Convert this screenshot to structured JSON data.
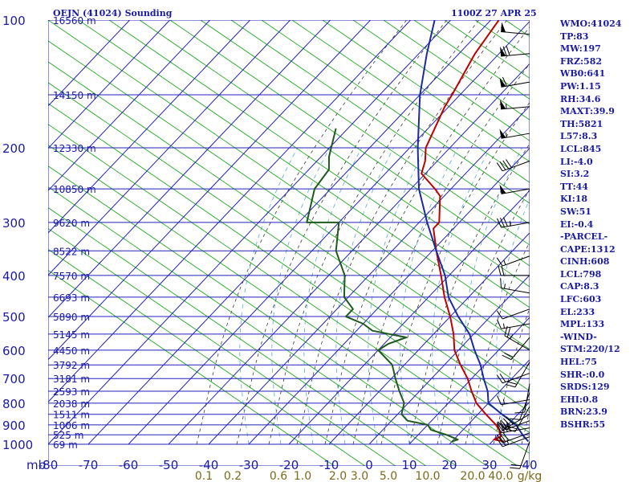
{
  "title_left": "OEJN (41024) Sounding",
  "title_right": "1100Z 27 APR 25",
  "indices": [
    "WMO:41024",
    "TP:83",
    "MW:197",
    "FRZ:582",
    "WB0:641",
    "PW:1.15",
    "RH:34.6",
    "MAXT:39.9",
    "TH:5821",
    "L57:8.3",
    "LCL:845",
    "LI:-4.0",
    "SI:3.2",
    "TT:44",
    "KI:18",
    "SW:51",
    "EI:-0.4",
    "-PARCEL-",
    "CAPE:1312",
    "CINH:608",
    "LCL:798",
    "CAP:8.3",
    "LFC:603",
    "EL:233",
    "MPL:133",
    "-WIND-",
    "STM:220/12",
    "HEL:75",
    "SHR-:0.0",
    "SRDS:129",
    "EHI:0.8",
    "BRN:23.9",
    "BSHR:55"
  ],
  "chart_data": {
    "type": "line",
    "chart_kind": "skew-T log-P sounding",
    "y_axis": "pressure (mb), log scale",
    "ylim": [
      1000,
      100
    ],
    "pressure_ticks": [
      "100",
      "200",
      "300",
      "400",
      "500",
      "600",
      "700",
      "800",
      "900",
      "1000"
    ],
    "temperature_unit_label": "mb",
    "temperature_ticks": [
      "-80",
      "-70",
      "-60",
      "-50",
      "-40",
      "-30",
      "-20",
      "-10",
      "0",
      "10",
      "20",
      "30",
      "40"
    ],
    "mixing_ratio_labels": [
      "0.1",
      "0.2",
      "0.6",
      "1.0",
      "2.0",
      "3.0",
      "5.0",
      "10.0",
      "20.0",
      "40.0",
      "g/kg"
    ],
    "height_labels": [
      {
        "text": "16560 m",
        "p": 100
      },
      {
        "text": "14150 m",
        "p": 150
      },
      {
        "text": "12330 m",
        "p": 200
      },
      {
        "text": "10850 m",
        "p": 250
      },
      {
        "text": "9620 m",
        "p": 300
      },
      {
        "text": "8522 m",
        "p": 350
      },
      {
        "text": "7570 m",
        "p": 400
      },
      {
        "text": "6693 m",
        "p": 450
      },
      {
        "text": "5890 m",
        "p": 500
      },
      {
        "text": "5145 m",
        "p": 550
      },
      {
        "text": "4450 m",
        "p": 600
      },
      {
        "text": "3792 m",
        "p": 650
      },
      {
        "text": "3181 m",
        "p": 700
      },
      {
        "text": "2593 m",
        "p": 750
      },
      {
        "text": "2038 m",
        "p": 800
      },
      {
        "text": "1511 m",
        "p": 850
      },
      {
        "text": "1006 m",
        "p": 900
      },
      {
        "text": "525 m",
        "p": 950
      },
      {
        "text": "69 m",
        "p": 1000
      }
    ],
    "series": [
      {
        "color": "#c00000",
        "points": [
          [
            985,
            33
          ],
          [
            975,
            30
          ],
          [
            960,
            31
          ],
          [
            925,
            29
          ],
          [
            900,
            27
          ],
          [
            850,
            22
          ],
          [
            800,
            17
          ],
          [
            750,
            13
          ],
          [
            700,
            9
          ],
          [
            650,
            4
          ],
          [
            600,
            -1
          ],
          [
            550,
            -5
          ],
          [
            500,
            -10
          ],
          [
            450,
            -16
          ],
          [
            400,
            -22
          ],
          [
            350,
            -29
          ],
          [
            310,
            -35
          ],
          [
            300,
            -35
          ],
          [
            260,
            -41
          ],
          [
            250,
            -44
          ],
          [
            230,
            -51
          ],
          [
            215,
            -53
          ],
          [
            200,
            -56
          ],
          [
            160,
            -61
          ],
          [
            150,
            -62
          ],
          [
            120,
            -66
          ],
          [
            100,
            -68
          ]
        ]
      },
      {
        "color": "#1a2aa0",
        "points": [
          [
            985,
            39
          ],
          [
            950,
            36
          ],
          [
            900,
            32
          ],
          [
            850,
            26
          ],
          [
            800,
            20
          ],
          [
            750,
            17
          ],
          [
            700,
            13
          ],
          [
            650,
            9
          ],
          [
            600,
            4
          ],
          [
            550,
            -1
          ],
          [
            500,
            -8
          ],
          [
            450,
            -15
          ],
          [
            400,
            -21
          ],
          [
            350,
            -29
          ],
          [
            300,
            -38
          ],
          [
            250,
            -48
          ],
          [
            200,
            -58
          ],
          [
            150,
            -70
          ],
          [
            120,
            -78
          ],
          [
            100,
            -84
          ]
        ]
      },
      {
        "color": "#1e5a1e",
        "points": [
          [
            985,
            20
          ],
          [
            975,
            21
          ],
          [
            950,
            17
          ],
          [
            925,
            12
          ],
          [
            900,
            10
          ],
          [
            880,
            4
          ],
          [
            850,
            1
          ],
          [
            800,
            -1
          ],
          [
            750,
            -5
          ],
          [
            700,
            -9
          ],
          [
            650,
            -13
          ],
          [
            600,
            -20
          ],
          [
            580,
            -19
          ],
          [
            560,
            -16
          ],
          [
            540,
            -26
          ],
          [
            520,
            -30
          ],
          [
            500,
            -36
          ],
          [
            480,
            -36
          ],
          [
            450,
            -41
          ],
          [
            400,
            -46
          ],
          [
            350,
            -54
          ],
          [
            300,
            -60
          ],
          [
            300,
            -68
          ],
          [
            250,
            -74
          ],
          [
            225,
            -75
          ],
          [
            210,
            -78
          ],
          [
            180,
            -83
          ]
        ]
      }
    ],
    "wind_barbs": [
      {
        "p": 985,
        "dir": 200,
        "spd": 20
      },
      {
        "p": 960,
        "dir": 250,
        "spd": 25
      },
      {
        "p": 940,
        "dir": 250,
        "spd": 30
      },
      {
        "p": 915,
        "dir": 260,
        "spd": 40
      },
      {
        "p": 880,
        "dir": 250,
        "spd": 25
      },
      {
        "p": 850,
        "dir": 240,
        "spd": 40
      },
      {
        "p": 815,
        "dir": 210,
        "spd": 20
      },
      {
        "p": 785,
        "dir": 260,
        "spd": 15
      },
      {
        "p": 755,
        "dir": 200,
        "spd": 10
      },
      {
        "p": 720,
        "dir": 190,
        "spd": 10
      },
      {
        "p": 680,
        "dir": 250,
        "spd": 20
      },
      {
        "p": 640,
        "dir": 210,
        "spd": 20
      },
      {
        "p": 600,
        "dir": 300,
        "spd": 25
      },
      {
        "p": 560,
        "dir": 220,
        "spd": 20
      },
      {
        "p": 520,
        "dir": 260,
        "spd": 15
      },
      {
        "p": 480,
        "dir": 250,
        "spd": 10
      },
      {
        "p": 440,
        "dir": 280,
        "spd": 15
      },
      {
        "p": 400,
        "dir": 270,
        "spd": 20
      },
      {
        "p": 360,
        "dir": 250,
        "spd": 15
      },
      {
        "p": 300,
        "dir": 260,
        "spd": 35
      },
      {
        "p": 250,
        "dir": 260,
        "spd": 50
      },
      {
        "p": 215,
        "dir": 250,
        "spd": 40
      },
      {
        "p": 185,
        "dir": 260,
        "spd": 55
      },
      {
        "p": 160,
        "dir": 265,
        "spd": 55
      },
      {
        "p": 140,
        "dir": 260,
        "spd": 60
      },
      {
        "p": 120,
        "dir": 265,
        "spd": 70
      },
      {
        "p": 108,
        "dir": 275,
        "spd": 50
      }
    ]
  }
}
